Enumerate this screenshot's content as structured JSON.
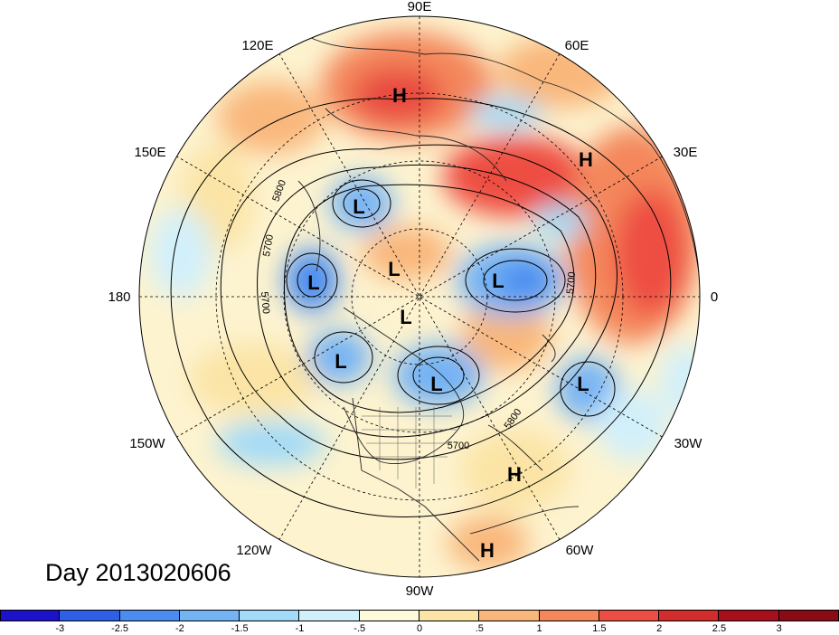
{
  "title": "Day 2013020606",
  "lon_labels": [
    "90E",
    "60E",
    "30E",
    "0",
    "30W",
    "60W",
    "90W",
    "120W",
    "150W",
    "180",
    "150E",
    "120E"
  ],
  "centers": [
    "H",
    "H",
    "L",
    "L",
    "L",
    "L",
    "L",
    "L",
    "L",
    "H",
    "H"
  ],
  "contour_labels": [
    "5800",
    "5700",
    "5700",
    "5700",
    "5800",
    "5700"
  ],
  "colorbar": {
    "ticks": [
      "-3",
      "-2.5",
      "-2",
      "-1.5",
      "-1",
      "-.5",
      "0",
      ".5",
      "1",
      "1.5",
      "2",
      "2.5",
      "3"
    ],
    "colors": [
      "#1c12c9",
      "#2e5fe6",
      "#4a8cf0",
      "#74b3f4",
      "#a3daf7",
      "#d2f0fb",
      "#fdfbdc",
      "#fbe4a5",
      "#f9b77b",
      "#f4875c",
      "#ee4d43",
      "#d22c2c",
      "#a80f1d",
      "#8a0b16"
    ]
  },
  "colors": {
    "ocean_neutral": "#fdf3cf",
    "warm": "#f4875c",
    "cold": "#74b3f4",
    "grid": "#000000"
  }
}
